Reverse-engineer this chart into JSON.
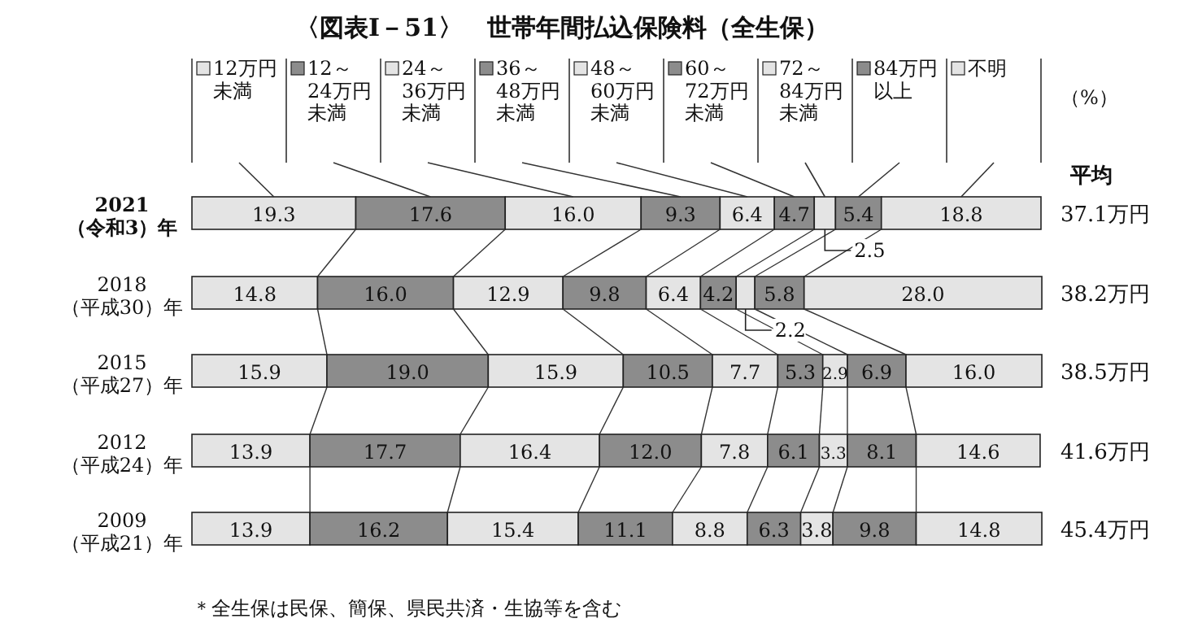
{
  "chart_data": {
    "type": "bar",
    "orientation": "horizontal",
    "stacked": true,
    "legend": "top",
    "title": "〈図表Ⅰ－51〉　世帯年間払込保険料（全生保）",
    "categories": [
      "2021\n（令和3）年",
      "2018\n（平成30）年",
      "2015\n（平成27）年",
      "2012\n（平成24）年",
      "2009\n（平成21）年"
    ],
    "series": [
      {
        "name": "12万円未満",
        "color": "#e4e4e4",
        "values": [
          19.3,
          14.8,
          15.9,
          13.9,
          13.9
        ],
        "value_labels": [
          "19.3",
          "14.8",
          "15.9",
          "13.9",
          "13.9"
        ]
      },
      {
        "name": "12～24万円未満",
        "color": "#8c8c8c",
        "values": [
          17.6,
          16.0,
          19.0,
          17.7,
          16.2
        ],
        "value_labels": [
          "17.6",
          "16.0",
          "19.0",
          "17.7",
          "16.2"
        ]
      },
      {
        "name": "24～36万円未満",
        "color": "#e4e4e4",
        "values": [
          16.0,
          12.9,
          15.9,
          16.4,
          15.4
        ],
        "value_labels": [
          "16.0",
          "12.9",
          "15.9",
          "16.4",
          "15.4"
        ]
      },
      {
        "name": "36～48万円未満",
        "color": "#8c8c8c",
        "values": [
          9.3,
          9.8,
          10.5,
          12.0,
          11.1
        ],
        "value_labels": [
          "9.3",
          "9.8",
          "10.5",
          "12.0",
          "11.1"
        ]
      },
      {
        "name": "48～60万円未満",
        "color": "#e4e4e4",
        "values": [
          6.4,
          6.4,
          7.7,
          7.8,
          8.8
        ],
        "value_labels": [
          "6.4",
          "6.4",
          "7.7",
          "7.8",
          "8.8"
        ]
      },
      {
        "name": "60～72万円未満",
        "color": "#8c8c8c",
        "values": [
          4.7,
          4.2,
          5.3,
          6.1,
          6.3
        ],
        "value_labels": [
          "4.7",
          "4.2",
          "5.3",
          "6.1",
          "6.3"
        ]
      },
      {
        "name": "72～84万円未満",
        "color": "#e4e4e4",
        "values": [
          2.5,
          2.2,
          2.9,
          3.3,
          3.8
        ],
        "value_labels": [
          "2.5",
          "2.2",
          "2.9",
          "3.3",
          "3.8"
        ]
      },
      {
        "name": "84万円以上",
        "color": "#8c8c8c",
        "values": [
          5.4,
          5.8,
          6.9,
          8.1,
          9.8
        ],
        "value_labels": [
          "5.4",
          "5.8",
          "6.9",
          "8.1",
          "9.8"
        ]
      },
      {
        "name": "不明",
        "color": "#e4e4e4",
        "values": [
          18.8,
          28.0,
          16.0,
          14.6,
          14.8
        ],
        "value_labels": [
          "18.8",
          "28.0",
          "16.0",
          "14.6",
          "14.8"
        ]
      }
    ],
    "annotations": [
      "（%）",
      "平均",
      "37.1万円",
      "38.2万円",
      "38.5万円",
      "41.6万円",
      "45.4万円",
      "＊全生保は民保、簡保、県民共済・生協等を含む"
    ]
  }
}
